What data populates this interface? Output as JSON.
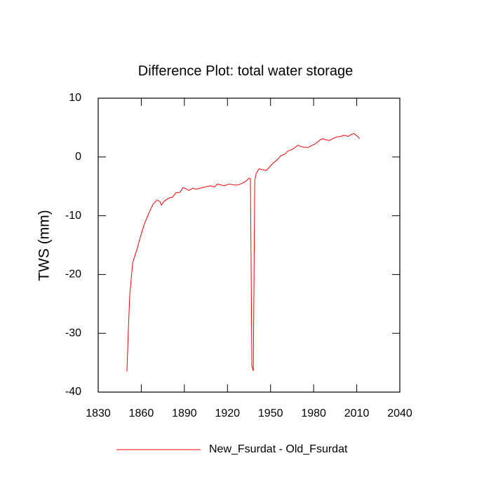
{
  "chart_data": {
    "type": "line",
    "title": "Difference Plot: total water storage",
    "y_label": "TWS  (mm)",
    "x": [
      1850,
      1851,
      1852,
      1854,
      1857,
      1859,
      1862,
      1865,
      1868,
      1871,
      1873,
      1874,
      1876,
      1879,
      1882,
      1884,
      1887,
      1889,
      1891,
      1893,
      1896,
      1898,
      1901,
      1903,
      1906,
      1908,
      1911,
      1913,
      1916,
      1918,
      1921,
      1923,
      1926,
      1928,
      1931,
      1933,
      1935,
      1936,
      1937,
      1938,
      1939,
      1940,
      1942,
      1945,
      1947,
      1950,
      1952,
      1955,
      1957,
      1960,
      1962,
      1965,
      1967,
      1969,
      1972,
      1976,
      1979,
      1981,
      1984,
      1986,
      1989,
      1991,
      1994,
      1996,
      1999,
      2001,
      2004,
      2006,
      2008,
      2010,
      2011,
      2012
    ],
    "series": [
      {
        "name": "New_Fsurdat - Old_Fsurdat",
        "color": "#ff0000",
        "values": [
          -36.5,
          -29.4,
          -23.4,
          -18.0,
          -15.7,
          -13.9,
          -11.5,
          -9.7,
          -8.1,
          -7.3,
          -7.6,
          -8.2,
          -7.5,
          -7.0,
          -6.8,
          -6.1,
          -6.0,
          -5.2,
          -5.4,
          -5.7,
          -5.3,
          -5.5,
          -5.3,
          -5.2,
          -5.0,
          -4.9,
          -5.1,
          -4.6,
          -4.8,
          -4.9,
          -4.6,
          -4.7,
          -4.8,
          -4.7,
          -4.4,
          -4.1,
          -3.6,
          -3.7,
          -35.5,
          -36.4,
          -4.0,
          -2.8,
          -2.0,
          -2.2,
          -2.3,
          -1.5,
          -1.0,
          -0.4,
          0.2,
          0.5,
          1.0,
          1.3,
          1.6,
          2.0,
          1.7,
          1.6,
          2.0,
          2.2,
          2.8,
          3.1,
          2.9,
          2.8,
          3.2,
          3.4,
          3.5,
          3.7,
          3.5,
          3.8,
          4.0,
          3.6,
          3.4,
          3.1
        ]
      }
    ],
    "xlim": [
      1830,
      2040
    ],
    "xticks": [
      1830,
      1860,
      1890,
      1920,
      1950,
      1980,
      2010,
      2040
    ],
    "ylim": [
      -40,
      10
    ],
    "yticks": [
      -40,
      -30,
      -20,
      -10,
      0,
      10
    ],
    "legend": "bottom"
  }
}
